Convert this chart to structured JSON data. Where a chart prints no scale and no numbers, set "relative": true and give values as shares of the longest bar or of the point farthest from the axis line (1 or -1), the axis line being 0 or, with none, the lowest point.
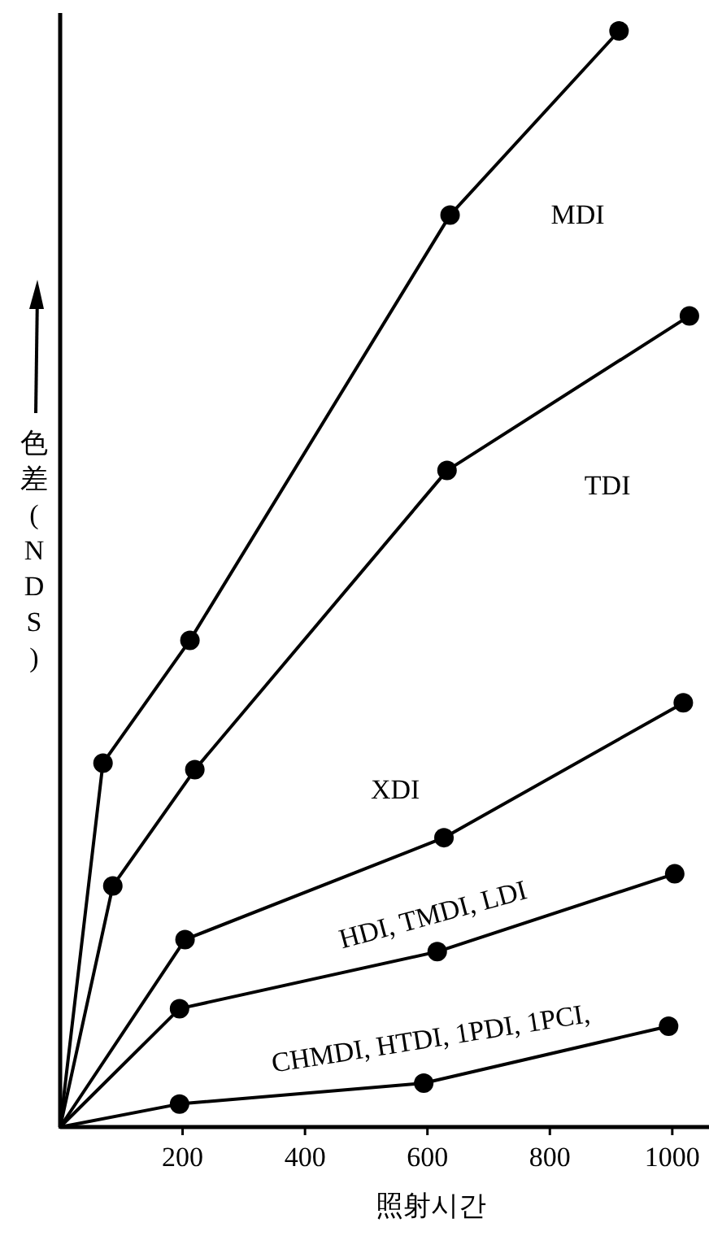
{
  "chart_data": {
    "type": "line",
    "relative": true,
    "xlabel": "照射시간",
    "ylabel": "色差(NDS)",
    "xlim": [
      0,
      1060
    ],
    "xticks": [
      200,
      400,
      600,
      800,
      1000
    ],
    "tick_labels": "x",
    "marker": "circle",
    "line_style": "solid",
    "legend": false,
    "grid": false,
    "series": [
      {
        "name": "MDI",
        "color": "#000000",
        "x": [
          0,
          70,
          212,
          637,
          913
        ],
        "values": [
          0,
          0.332,
          0.444,
          0.832,
          1
        ]
      },
      {
        "name": "TDI",
        "color": "#000000",
        "x": [
          0,
          86,
          220,
          632,
          1028
        ],
        "values": [
          0,
          0.22,
          0.326,
          0.599,
          0.74
        ]
      },
      {
        "name": "XDI",
        "color": "#000000",
        "x": [
          0,
          204,
          627,
          1018
        ],
        "values": [
          0,
          0.171,
          0.264,
          0.387
        ]
      },
      {
        "name": "HDI, TMDI, LDI",
        "color": "#000000",
        "x": [
          0,
          195,
          616,
          1004
        ],
        "values": [
          0,
          0.108,
          0.16,
          0.231
        ]
      },
      {
        "name": "CHMDI, HTDI, 1PDI, 1PCI,",
        "color": "#000000",
        "x": [
          0,
          195,
          594,
          994
        ],
        "values": [
          0,
          0.021,
          0.04,
          0.092
        ]
      }
    ]
  }
}
